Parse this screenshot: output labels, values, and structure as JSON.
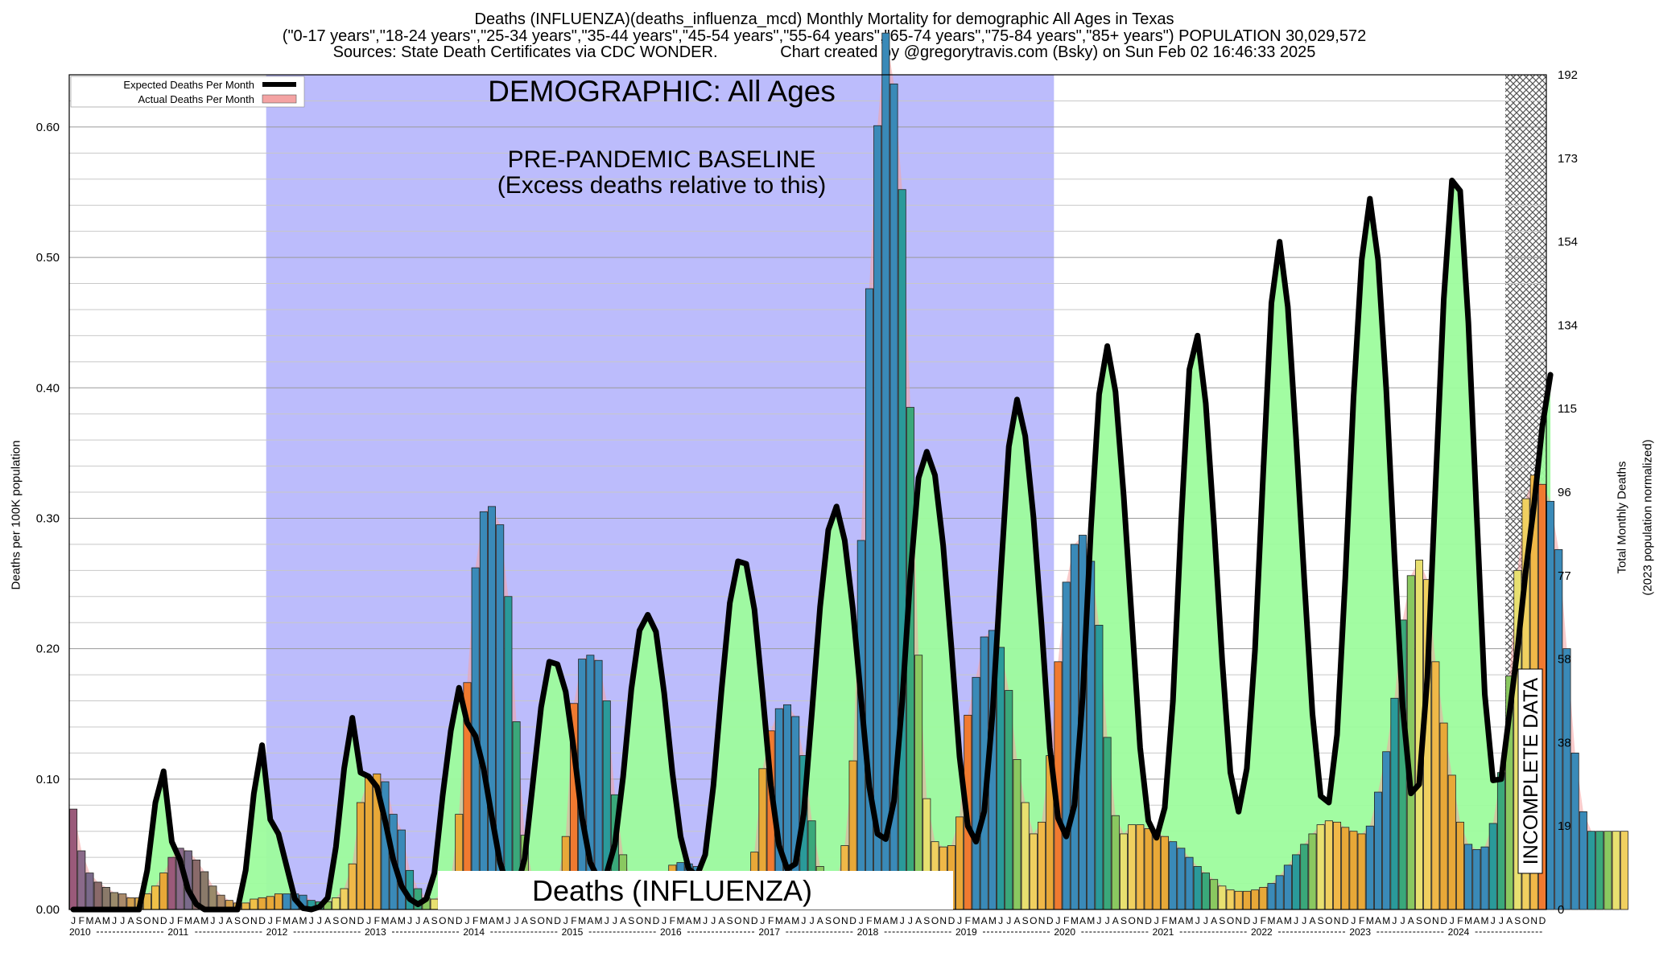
{
  "header": {
    "line1": "Deaths (INFLUENZA)(deaths_influenza_mcd) Monthly Mortality for demographic All Ages in Texas",
    "line2": "(\"0-17 years\",\"18-24 years\",\"25-34 years\",\"35-44 years\",\"45-54 years\",\"55-64 years\",\"65-74 years\",\"75-84 years\",\"85+ years\") POPULATION 30,029,572",
    "line3": "Sources: State Death Certificates via CDC WONDER.              Chart created by @gregorytravis.com (Bsky) on Sun Feb 02 16:46:33 2025"
  },
  "chart_data": {
    "type": "bar",
    "title": "Deaths (INFLUENZA)(deaths_influenza_mcd) Monthly Mortality for demographic All Ages in Texas",
    "ylabel": "Deaths per 100K population",
    "y2label_line1": "Total Monthly Deaths",
    "y2label_line2": "(2023 population normalized)",
    "ylim": [
      0,
      0.64
    ],
    "y_ticks": [
      "0.00",
      "0.10",
      "0.20",
      "0.30",
      "0.40",
      "0.50",
      "0.60"
    ],
    "y2_ticks": [
      "0",
      "19",
      "38",
      "58",
      "77",
      "96",
      "115",
      "134",
      "154",
      "173",
      "192"
    ],
    "month_letters": [
      "J",
      "F",
      "M",
      "A",
      "M",
      "J",
      "J",
      "A",
      "S",
      "O",
      "N",
      "D"
    ],
    "years": [
      "2010",
      "2011",
      "2012",
      "2013",
      "2014",
      "2015",
      "2016",
      "2017",
      "2018",
      "2019",
      "2020",
      "2021",
      "2022",
      "2023",
      "2024"
    ],
    "legend": {
      "expected": "Expected Deaths Per Month",
      "actual": "Actual Deaths Per Month"
    },
    "annotations": {
      "demographic": "DEMOGRAPHIC: All Ages",
      "baseline_line1": "PRE-PANDEMIC BASELINE",
      "baseline_line2": "(Excess deaths relative to this)",
      "cause": "Deaths (INFLUENZA)",
      "incomplete": "INCOMPLETE DATA"
    },
    "baseline_period": [
      "2012-01",
      "2019-12"
    ],
    "incomplete_period": [
      "2024-08",
      "2024-12"
    ],
    "colors": {
      "baseline": "#bcbcfc",
      "excess": "#9dfc9d",
      "overlap": "#6fd89a",
      "expected_line": "#000000",
      "actual_fill": "#f4a3a3"
    },
    "series": [
      {
        "name": "Actual Deaths Per Month",
        "values": [
          0.077,
          0.045,
          0.028,
          0.021,
          0.017,
          0.013,
          0.012,
          0.009,
          0.009,
          0.012,
          0.018,
          0.028,
          0.04,
          0.047,
          0.045,
          0.038,
          0.029,
          0.018,
          0.011,
          0.007,
          0.005,
          0.005,
          0.008,
          0.009,
          0.01,
          0.012,
          0.012,
          0.012,
          0.011,
          0.007,
          0.006,
          0.006,
          0.009,
          0.016,
          0.035,
          0.082,
          0.101,
          0.104,
          0.098,
          0.073,
          0.061,
          0.03,
          0.016,
          0.009,
          0.008,
          0.013,
          0.022,
          0.073,
          0.174,
          0.262,
          0.305,
          0.309,
          0.295,
          0.24,
          0.144,
          0.057,
          0.022,
          0.012,
          0.012,
          0.021,
          0.056,
          0.158,
          0.192,
          0.195,
          0.191,
          0.16,
          0.088,
          0.042,
          0.022,
          0.015,
          0.014,
          0.017,
          0.025,
          0.034,
          0.036,
          0.035,
          0.033,
          0.029,
          0.021,
          0.014,
          0.01,
          0.012,
          0.02,
          0.044,
          0.108,
          0.137,
          0.154,
          0.157,
          0.148,
          0.118,
          0.068,
          0.033,
          0.018,
          0.022,
          0.049,
          0.114,
          0.283,
          0.476,
          0.601,
          0.672,
          0.633,
          0.552,
          0.385,
          0.195,
          0.085,
          0.052,
          0.048,
          0.049,
          0.071,
          0.149,
          0.178,
          0.209,
          0.214,
          0.201,
          0.168,
          0.115,
          0.082,
          0.058,
          0.067,
          0.118,
          0.19,
          0.251,
          0.28,
          0.287,
          0.267,
          0.218,
          0.132,
          0.072,
          0.058,
          0.065,
          0.065,
          0.062,
          0.059,
          0.056,
          0.052,
          0.047,
          0.04,
          0.033,
          0.028,
          0.023,
          0.018,
          0.015,
          0.014,
          0.014,
          0.015,
          0.017,
          0.02,
          0.026,
          0.034,
          0.042,
          0.05,
          0.058,
          0.065,
          0.068,
          0.067,
          0.063,
          0.06,
          0.058,
          0.064,
          0.09,
          0.121,
          0.162,
          0.222,
          0.256,
          0.268,
          0.253,
          0.19,
          0.143,
          0.103,
          0.067,
          0.05,
          0.046,
          0.048,
          0.066,
          0.105,
          0.179,
          0.26,
          0.315,
          0.333,
          0.326,
          0.313,
          0.276,
          0.2,
          0.12,
          0.075,
          0.06,
          0.06,
          0.06,
          0.06,
          0.06
        ]
      },
      {
        "name": "Expected Deaths Per Month",
        "values": [
          0.0,
          0.0,
          0.0,
          0.0,
          0.0,
          0.0,
          0.0,
          0.0,
          0.0,
          0.03,
          0.082,
          0.106,
          0.052,
          0.038,
          0.015,
          0.004,
          0.0,
          0.0,
          0.0,
          0.0,
          0.0,
          0.03,
          0.089,
          0.126,
          0.069,
          0.058,
          0.033,
          0.008,
          0.001,
          0.0,
          0.002,
          0.009,
          0.048,
          0.108,
          0.147,
          0.105,
          0.102,
          0.094,
          0.068,
          0.038,
          0.018,
          0.008,
          0.004,
          0.008,
          0.028,
          0.087,
          0.137,
          0.17,
          0.143,
          0.133,
          0.108,
          0.071,
          0.036,
          0.016,
          0.015,
          0.039,
          0.097,
          0.155,
          0.19,
          0.188,
          0.167,
          0.122,
          0.07,
          0.036,
          0.023,
          0.028,
          0.05,
          0.102,
          0.169,
          0.214,
          0.226,
          0.213,
          0.166,
          0.105,
          0.056,
          0.031,
          0.026,
          0.042,
          0.095,
          0.169,
          0.235,
          0.267,
          0.265,
          0.23,
          0.165,
          0.095,
          0.049,
          0.031,
          0.035,
          0.073,
          0.151,
          0.232,
          0.291,
          0.309,
          0.283,
          0.23,
          0.161,
          0.094,
          0.058,
          0.054,
          0.083,
          0.159,
          0.256,
          0.331,
          0.351,
          0.333,
          0.279,
          0.201,
          0.117,
          0.064,
          0.052,
          0.075,
          0.149,
          0.255,
          0.355,
          0.391,
          0.363,
          0.301,
          0.217,
          0.124,
          0.07,
          0.056,
          0.08,
          0.163,
          0.292,
          0.395,
          0.432,
          0.397,
          0.317,
          0.221,
          0.124,
          0.068,
          0.055,
          0.078,
          0.16,
          0.297,
          0.414,
          0.44,
          0.388,
          0.295,
          0.191,
          0.105,
          0.075,
          0.108,
          0.199,
          0.335,
          0.465,
          0.512,
          0.462,
          0.362,
          0.253,
          0.15,
          0.087,
          0.082,
          0.134,
          0.254,
          0.392,
          0.498,
          0.545,
          0.498,
          0.398,
          0.27,
          0.155,
          0.089,
          0.096,
          0.178,
          0.325,
          0.468,
          0.559,
          0.551,
          0.45,
          0.305,
          0.165,
          0.099,
          0.1,
          0.15,
          0.2,
          0.26,
          0.31,
          0.37,
          0.41
        ]
      }
    ]
  }
}
